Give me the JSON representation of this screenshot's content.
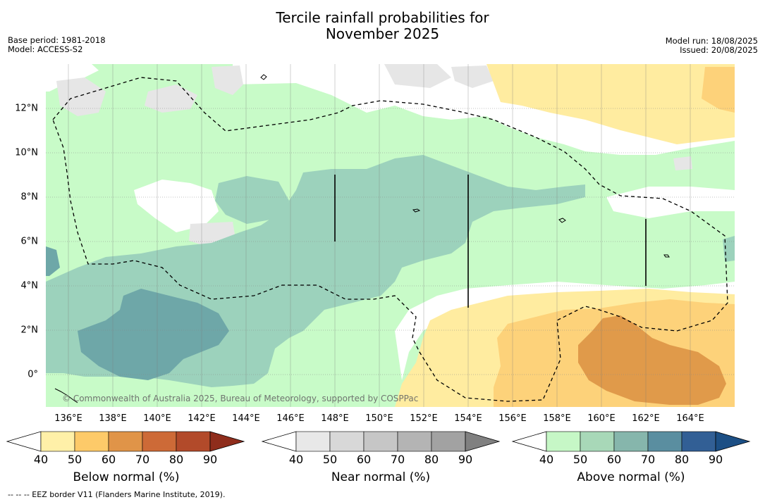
{
  "title": {
    "line1": "Tercile rainfall probabilities for",
    "line2": "November 2025"
  },
  "meta_left": {
    "base_period": "Base period: 1981-2018",
    "model": "Model: ACCESS-S2"
  },
  "meta_right": {
    "model_run": "Model run: 18/08/2025",
    "issued": "Issued: 20/08/2025"
  },
  "map": {
    "lon_range": [
      135,
      166
    ],
    "lat_range": [
      -1.5,
      14
    ],
    "lon_ticks": [
      "136°E",
      "138°E",
      "140°E",
      "142°E",
      "144°E",
      "146°E",
      "148°E",
      "150°E",
      "152°E",
      "154°E",
      "156°E",
      "158°E",
      "160°E",
      "162°E",
      "164°E"
    ],
    "lat_ticks": [
      "12°N",
      "10°N",
      "8°N",
      "6°N",
      "4°N",
      "2°N",
      "0°"
    ],
    "copyright": "© Commonwealth of Australia 2025, Bureau of Meteorology, supported by COSPPac",
    "eez_note": "--  --  -- EEZ border V11 (Flanders Marine Institute, 2019).",
    "colors": {
      "above_50": "#c8fbc8",
      "above_60": "#9cd2bc",
      "above_70": "#6ea7a8",
      "below_50": "#ffeca0",
      "below_60": "#fdd27a",
      "below_70": "#e09a4a",
      "near_50": "#e6e6e6"
    }
  },
  "colorbars": [
    {
      "label": "Below normal (%)",
      "ticks": [
        "40",
        "50",
        "60",
        "70",
        "80",
        "90"
      ],
      "colors": [
        "#ffffff",
        "#fff0a8",
        "#fdca69",
        "#e09448",
        "#cd6a37",
        "#b24a2a",
        "#8f2d1c"
      ]
    },
    {
      "label": "Near normal (%)",
      "ticks": [
        "40",
        "50",
        "60",
        "70",
        "80",
        "90"
      ],
      "colors": [
        "#ffffff",
        "#e8e8e8",
        "#d8d8d8",
        "#c6c6c6",
        "#b4b4b4",
        "#a2a2a2",
        "#808080"
      ]
    },
    {
      "label": "Above normal (%)",
      "ticks": [
        "40",
        "50",
        "60",
        "70",
        "80",
        "90"
      ],
      "colors": [
        "#ffffff",
        "#c6f7c6",
        "#a8d8b8",
        "#86b6ac",
        "#5a8ea0",
        "#325f95",
        "#1c4f85"
      ]
    }
  ]
}
